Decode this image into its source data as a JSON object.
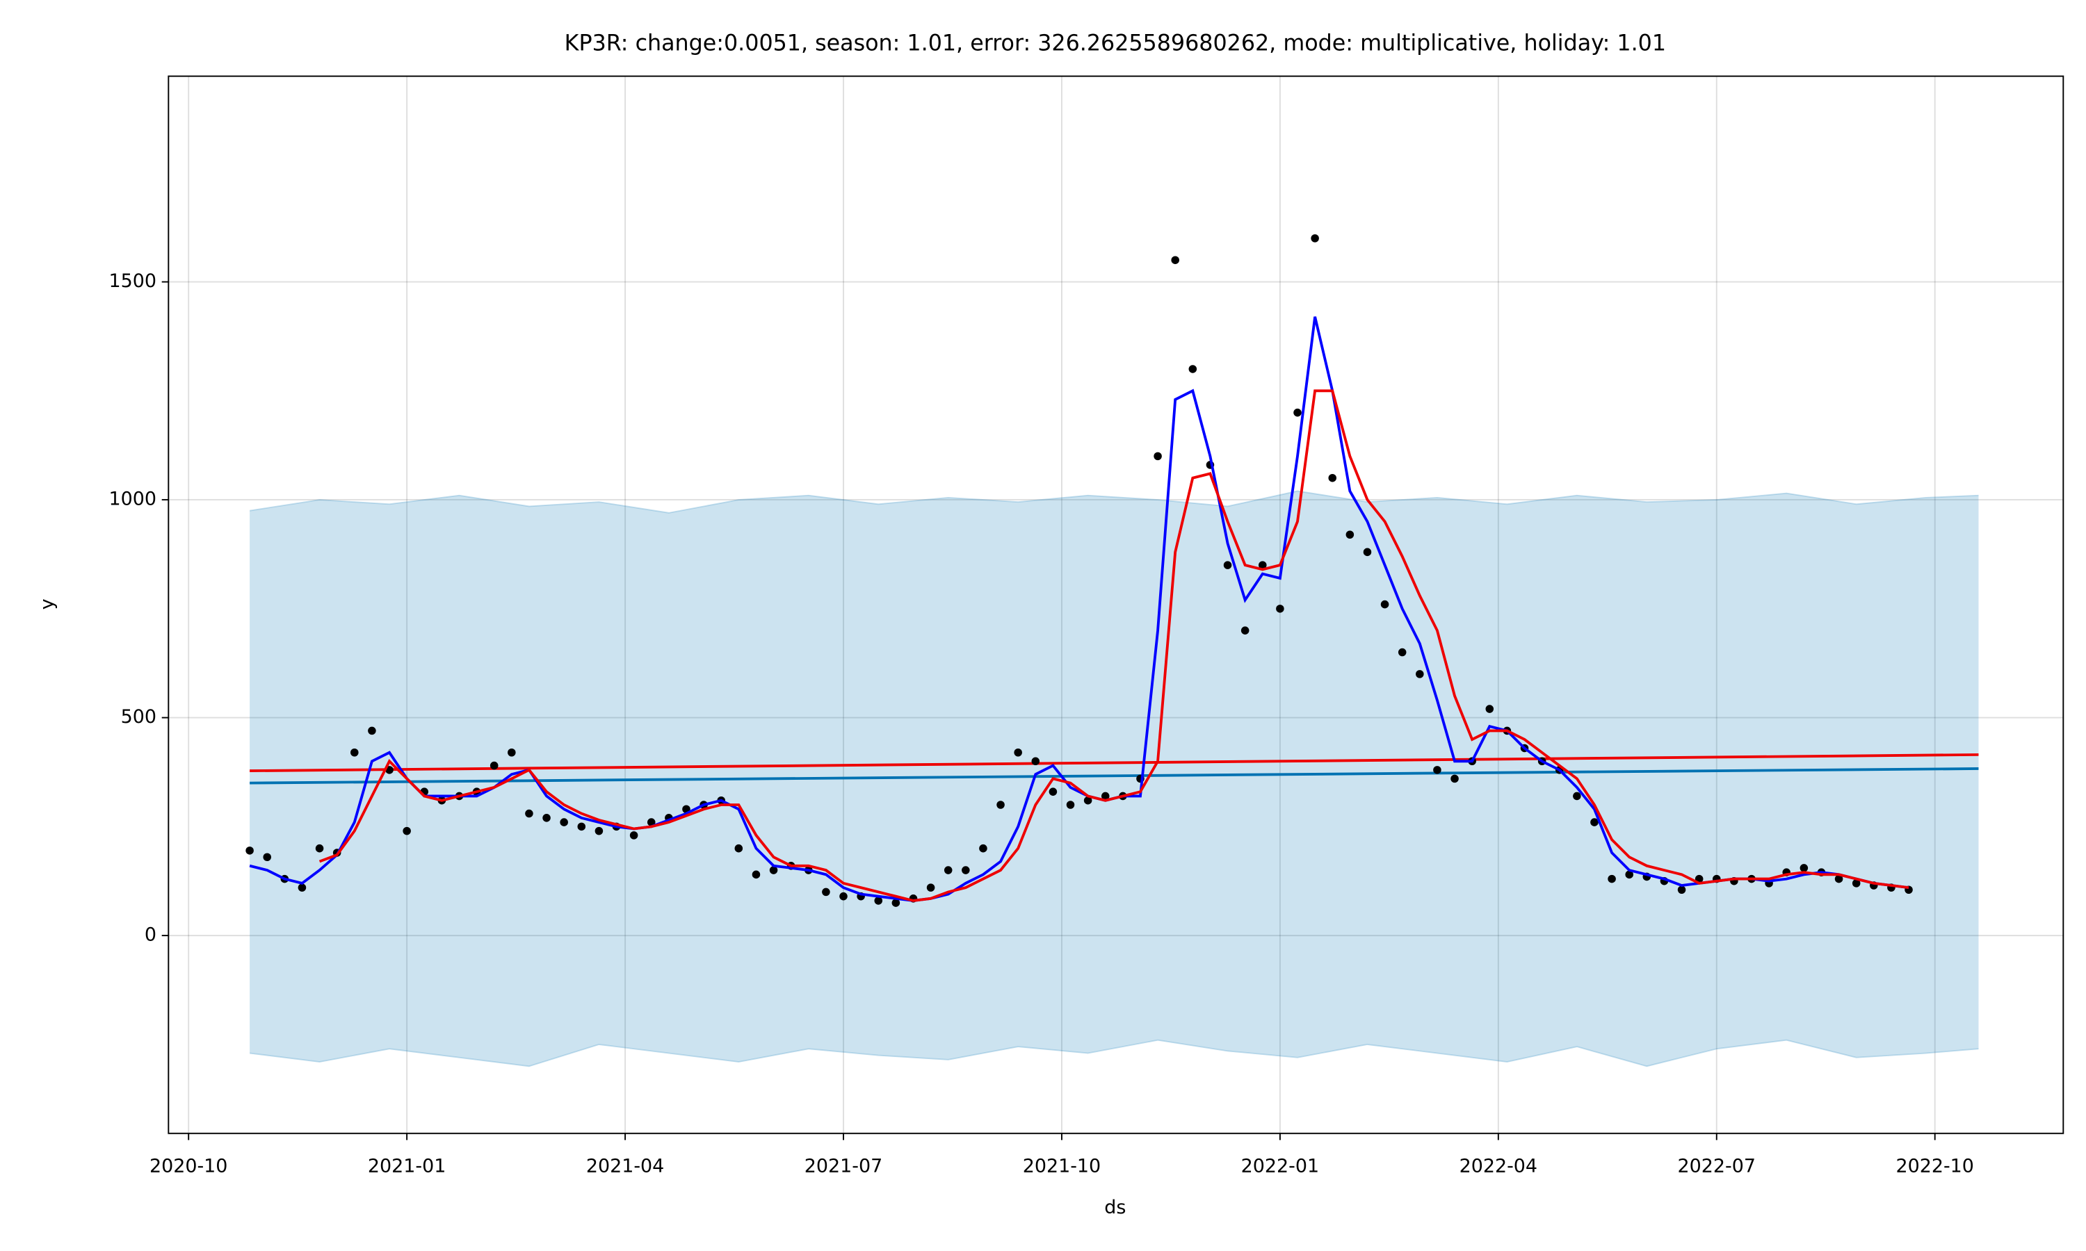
{
  "chart_data": {
    "type": "forecast",
    "title": "KP3R: change:0.0051, season: 1.01, error: 326.2625589680262, mode: multiplicative, holiday: 1.01",
    "x_label": "ds",
    "y_label": "y",
    "xlim": [
      2020.727,
      2022.897
    ],
    "ylim": [
      -454,
      1972
    ],
    "xticks": [
      {
        "value": 2020.75,
        "label": "2020-10"
      },
      {
        "value": 2021.0,
        "label": "2021-01"
      },
      {
        "value": 2021.25,
        "label": "2021-04"
      },
      {
        "value": 2021.5,
        "label": "2021-07"
      },
      {
        "value": 2021.75,
        "label": "2021-10"
      },
      {
        "value": 2022.0,
        "label": "2022-01"
      },
      {
        "value": 2022.25,
        "label": "2022-04"
      },
      {
        "value": 2022.5,
        "label": "2022-07"
      },
      {
        "value": 2022.75,
        "label": "2022-10"
      }
    ],
    "yticks": [
      0,
      500,
      1000,
      1500
    ],
    "grid": true,
    "series": [
      {
        "kind": "band",
        "color": "#0072b2",
        "x": [
          2020.82,
          2020.9,
          2020.98,
          2021.06,
          2021.14,
          2021.22,
          2021.3,
          2021.38,
          2021.46,
          2021.54,
          2021.62,
          2021.7,
          2021.78,
          2021.86,
          2021.94,
          2022.02,
          2022.1,
          2022.18,
          2022.26,
          2022.34,
          2022.42,
          2022.5,
          2022.58,
          2022.66,
          2022.74,
          2022.8
        ],
        "upper": [
          975,
          1000,
          990,
          1010,
          985,
          995,
          970,
          1000,
          1010,
          990,
          1005,
          995,
          1010,
          1000,
          985,
          1020,
          995,
          1005,
          990,
          1010,
          995,
          1000,
          1015,
          990,
          1005,
          1010
        ],
        "lower": [
          -270,
          -290,
          -260,
          -280,
          -300,
          -250,
          -270,
          -290,
          -260,
          -275,
          -285,
          -255,
          -270,
          -240,
          -265,
          -280,
          -250,
          -270,
          -290,
          -255,
          -300,
          -260,
          -240,
          -280,
          -270,
          -260
        ]
      },
      {
        "kind": "line",
        "color": "#0072b2",
        "x": [
          2020.82,
          2022.8
        ],
        "values": [
          350,
          383
        ]
      },
      {
        "kind": "line",
        "color": "#ee0000",
        "x": [
          2020.82,
          2022.8
        ],
        "values": [
          378,
          415
        ]
      },
      {
        "kind": "points",
        "color": "#000000",
        "x": [
          2020.82,
          2020.84,
          2020.86,
          2020.88,
          2020.9,
          2020.92,
          2020.94,
          2020.96,
          2020.98,
          2021.0,
          2021.02,
          2021.04,
          2021.06,
          2021.08,
          2021.1,
          2021.12,
          2021.14,
          2021.16,
          2021.18,
          2021.2,
          2021.22,
          2021.24,
          2021.26,
          2021.28,
          2021.3,
          2021.32,
          2021.34,
          2021.36,
          2021.38,
          2021.4,
          2021.42,
          2021.44,
          2021.46,
          2021.48,
          2021.5,
          2021.52,
          2021.54,
          2021.56,
          2021.58,
          2021.6,
          2021.62,
          2021.64,
          2021.66,
          2021.68,
          2021.7,
          2021.72,
          2021.74,
          2021.76,
          2021.78,
          2021.8,
          2021.82,
          2021.84,
          2021.86,
          2021.88,
          2021.9,
          2021.92,
          2021.94,
          2021.96,
          2021.98,
          2022.0,
          2022.02,
          2022.04,
          2022.06,
          2022.08,
          2022.1,
          2022.12,
          2022.14,
          2022.16,
          2022.18,
          2022.2,
          2022.22,
          2022.24,
          2022.26,
          2022.28,
          2022.3,
          2022.32,
          2022.34,
          2022.36,
          2022.38,
          2022.4,
          2022.42,
          2022.44,
          2022.46,
          2022.48,
          2022.5,
          2022.52,
          2022.54,
          2022.56,
          2022.58,
          2022.6,
          2022.62,
          2022.64,
          2022.66,
          2022.68,
          2022.7,
          2022.72
        ],
        "values": [
          195,
          180,
          130,
          110,
          200,
          190,
          420,
          470,
          380,
          240,
          330,
          310,
          320,
          330,
          390,
          420,
          280,
          270,
          260,
          250,
          240,
          250,
          230,
          260,
          270,
          290,
          300,
          310,
          200,
          140,
          150,
          160,
          150,
          100,
          90,
          90,
          80,
          75,
          85,
          110,
          150,
          150,
          200,
          300,
          420,
          400,
          330,
          300,
          310,
          320,
          320,
          360,
          1100,
          1550,
          1300,
          1080,
          850,
          700,
          850,
          750,
          1200,
          1600,
          1050,
          920,
          880,
          760,
          650,
          600,
          380,
          360,
          400,
          520,
          470,
          430,
          400,
          380,
          320,
          260,
          130,
          140,
          135,
          125,
          105,
          130,
          130,
          125,
          130,
          120,
          145,
          155,
          145,
          130,
          120,
          115,
          110,
          105
        ]
      },
      {
        "kind": "line",
        "color": "#0000ff",
        "x": [
          2020.82,
          2020.84,
          2020.86,
          2020.88,
          2020.9,
          2020.92,
          2020.94,
          2020.96,
          2020.98,
          2021.0,
          2021.02,
          2021.04,
          2021.06,
          2021.08,
          2021.1,
          2021.12,
          2021.14,
          2021.16,
          2021.18,
          2021.2,
          2021.22,
          2021.24,
          2021.26,
          2021.28,
          2021.3,
          2021.32,
          2021.34,
          2021.36,
          2021.38,
          2021.4,
          2021.42,
          2021.44,
          2021.46,
          2021.48,
          2021.5,
          2021.52,
          2021.54,
          2021.56,
          2021.58,
          2021.6,
          2021.62,
          2021.64,
          2021.66,
          2021.68,
          2021.7,
          2021.72,
          2021.74,
          2021.76,
          2021.78,
          2021.8,
          2021.82,
          2021.84,
          2021.86,
          2021.88,
          2021.9,
          2021.92,
          2021.94,
          2021.96,
          2021.98,
          2022.0,
          2022.02,
          2022.04,
          2022.06,
          2022.08,
          2022.1,
          2022.12,
          2022.14,
          2022.16,
          2022.18,
          2022.2,
          2022.22,
          2022.24,
          2022.26,
          2022.28,
          2022.3,
          2022.32,
          2022.34,
          2022.36,
          2022.38,
          2022.4,
          2022.42,
          2022.44,
          2022.46,
          2022.48,
          2022.5,
          2022.52,
          2022.54,
          2022.56,
          2022.58,
          2022.6,
          2022.62,
          2022.64,
          2022.66,
          2022.68,
          2022.7,
          2022.72
        ],
        "values": [
          160,
          150,
          130,
          120,
          150,
          185,
          260,
          400,
          420,
          360,
          320,
          320,
          320,
          320,
          340,
          370,
          380,
          320,
          290,
          270,
          260,
          250,
          245,
          250,
          265,
          280,
          300,
          310,
          290,
          200,
          160,
          155,
          150,
          140,
          110,
          95,
          90,
          85,
          80,
          85,
          95,
          120,
          140,
          170,
          250,
          370,
          390,
          340,
          320,
          310,
          320,
          320,
          700,
          1230,
          1250,
          1100,
          900,
          770,
          830,
          820,
          1100,
          1420,
          1250,
          1020,
          950,
          850,
          750,
          670,
          540,
          400,
          400,
          480,
          470,
          430,
          400,
          380,
          340,
          290,
          190,
          150,
          140,
          130,
          115,
          120,
          125,
          130,
          130,
          125,
          130,
          140,
          145,
          140,
          130,
          120,
          115,
          110
        ]
      },
      {
        "kind": "line",
        "color": "#ee0000",
        "x": [
          2020.82,
          2020.84,
          2020.86,
          2020.88,
          2020.9,
          2020.92,
          2020.94,
          2020.96,
          2020.98,
          2021.0,
          2021.02,
          2021.04,
          2021.06,
          2021.08,
          2021.1,
          2021.12,
          2021.14,
          2021.16,
          2021.18,
          2021.2,
          2021.22,
          2021.24,
          2021.26,
          2021.28,
          2021.3,
          2021.32,
          2021.34,
          2021.36,
          2021.38,
          2021.4,
          2021.42,
          2021.44,
          2021.46,
          2021.48,
          2021.5,
          2021.52,
          2021.54,
          2021.56,
          2021.58,
          2021.6,
          2021.62,
          2021.64,
          2021.66,
          2021.68,
          2021.7,
          2021.72,
          2021.74,
          2021.76,
          2021.78,
          2021.8,
          2021.82,
          2021.84,
          2021.86,
          2021.88,
          2021.9,
          2021.92,
          2021.94,
          2021.96,
          2021.98,
          2022.0,
          2022.02,
          2022.04,
          2022.06,
          2022.08,
          2022.1,
          2022.12,
          2022.14,
          2022.16,
          2022.18,
          2022.2,
          2022.22,
          2022.24,
          2022.26,
          2022.28,
          2022.3,
          2022.32,
          2022.34,
          2022.36,
          2022.38,
          2022.4,
          2022.42,
          2022.44,
          2022.46,
          2022.48,
          2022.5,
          2022.52,
          2022.54,
          2022.56,
          2022.58,
          2022.6,
          2022.62,
          2022.64,
          2022.66,
          2022.68,
          2022.7,
          2022.72
        ],
        "values": [
          null,
          null,
          null,
          null,
          170,
          185,
          240,
          320,
          400,
          360,
          320,
          310,
          320,
          330,
          340,
          360,
          380,
          330,
          300,
          280,
          265,
          255,
          245,
          250,
          260,
          275,
          290,
          300,
          300,
          230,
          180,
          160,
          160,
          150,
          120,
          110,
          100,
          90,
          80,
          85,
          100,
          110,
          130,
          150,
          200,
          300,
          360,
          350,
          320,
          310,
          320,
          330,
          400,
          880,
          1050,
          1060,
          950,
          850,
          840,
          850,
          950,
          1250,
          1250,
          1100,
          1000,
          950,
          870,
          780,
          700,
          550,
          450,
          470,
          470,
          450,
          420,
          390,
          360,
          300,
          220,
          180,
          160,
          150,
          140,
          120,
          125,
          130,
          130,
          130,
          140,
          145,
          140,
          140,
          130,
          120,
          115,
          110
        ]
      }
    ]
  }
}
